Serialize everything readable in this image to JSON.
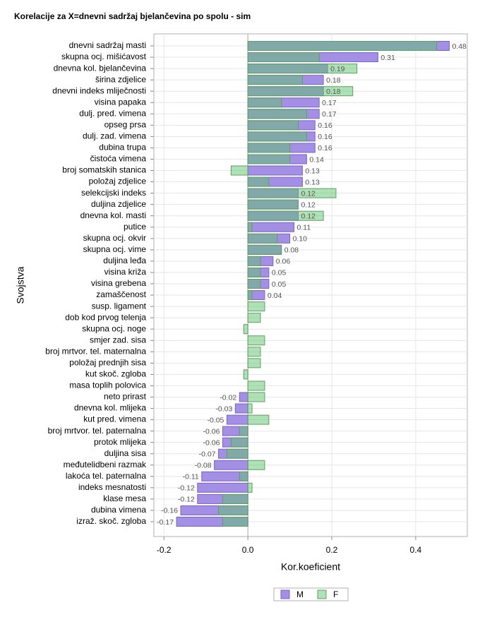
{
  "chart_data": {
    "type": "overlaid-hbar",
    "title": "Korelacije za X=dnevni sadržaj bjelančevina po spolu - sim",
    "x_label": "Kor.koeficient",
    "y_label": "Svojstva",
    "categories": [
      "dnevni sadržaj masti",
      "skupna ocj. mišićavost",
      "dnevna kol. bjelančevina",
      "širina zdjelice",
      "dnevni indeks mliječnosti",
      "visina papaka",
      "dulj. pred. vimena",
      "opseg prsa",
      "dulj. zad. vimena",
      "dubina trupa",
      "čistoća vimena",
      "broj somatskih stanica",
      "položaj zdjelice",
      "selekcijski indeks",
      "duljina zdjelice",
      "dnevna kol. masti",
      "putice",
      "skupna ocj. okvir",
      "skupna ocj. vime",
      "duljina leđa",
      "visina križa",
      "visina grebena",
      "zamaščenost",
      "susp. ligament",
      "dob kod prvog telenja",
      "skupna ocj. noge",
      "smjer zad. sisa",
      "broj mrtvor. tel. maternalna",
      "položaj prednjih sisa",
      "kut skoč. zgloba",
      "masa toplih polovica",
      "neto prirast",
      "dnevna kol. mlijeka",
      "kut pred. vimena",
      "broj mrtvor. tel. paternalna",
      "protok mlijeka",
      "duljina sisa",
      "međutelidbeni razmak",
      "lakoća tel. paternalna",
      "indeks mesnatosti",
      "klase mesa",
      "dubina vimena",
      "izraž. skoč. zgloba"
    ],
    "series": [
      {
        "name": "M",
        "color": "#a38fe3",
        "border": "#7b62c9",
        "values": [
          0.48,
          0.31,
          0.19,
          0.18,
          0.18,
          0.17,
          0.17,
          0.16,
          0.16,
          0.16,
          0.14,
          0.13,
          0.13,
          0.12,
          0.12,
          0.12,
          0.11,
          0.1,
          0.08,
          0.06,
          0.05,
          0.05,
          0.04,
          null,
          null,
          null,
          null,
          null,
          null,
          null,
          null,
          -0.02,
          -0.03,
          -0.05,
          -0.06,
          -0.06,
          -0.07,
          -0.08,
          -0.11,
          -0.12,
          -0.12,
          -0.16,
          -0.17
        ],
        "value_labels": [
          "0.48",
          "0.31",
          "0.19",
          "0.18",
          "0.18",
          "0.17",
          "0.17",
          "0.16",
          "0.16",
          "0.16",
          "0.14",
          "0.13",
          "0.13",
          "0.12",
          "0.12",
          "0.12",
          "0.11",
          "0.10",
          "0.08",
          "0.06",
          "0.05",
          "0.05",
          "0.04",
          null,
          null,
          null,
          null,
          null,
          null,
          null,
          null,
          "-0.02",
          "-0.03",
          "-0.05",
          "-0.06",
          "-0.06",
          "-0.07",
          "-0.08",
          "-0.11",
          "-0.12",
          "-0.12",
          "-0.16",
          "-0.17"
        ]
      },
      {
        "name": "F",
        "color": "#5fc46f",
        "border": "#5f9f5f",
        "values": [
          0.45,
          0.17,
          0.26,
          0.13,
          0.25,
          0.08,
          0.14,
          0.12,
          0.14,
          0.1,
          0.1,
          -0.04,
          0.05,
          0.21,
          0.12,
          0.18,
          0.01,
          0.07,
          0.08,
          0.03,
          0.03,
          0.03,
          0.01,
          0.04,
          0.03,
          -0.01,
          0.04,
          0.03,
          0.03,
          -0.01,
          0.04,
          0.04,
          0.01,
          0.05,
          -0.02,
          -0.04,
          -0.05,
          0.04,
          -0.02,
          0.01,
          -0.06,
          -0.07,
          -0.06
        ]
      }
    ],
    "xlim": [
      -0.224,
      0.523
    ],
    "xticks": [
      -0.2,
      {
        "value": 0,
        "label": "0.0"
      },
      0.2,
      0.4
    ],
    "grid": true,
    "legend": "bottom"
  }
}
